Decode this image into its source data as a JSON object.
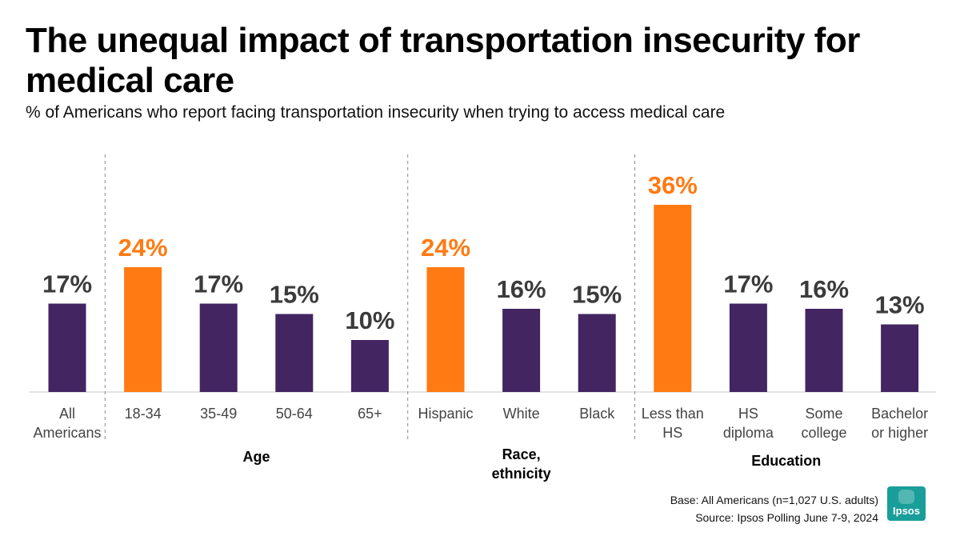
{
  "title": "The unequal impact of transportation insecurity for medical care",
  "subtitle": "% of Americans who report facing transportation insecurity when trying to access medical care",
  "footer": {
    "base": "Base: All Americans (n=1,027 U.S. adults)",
    "source": "Source: Ipsos Polling  June 7-9, 2024"
  },
  "logo_text": "Ipsos",
  "colors": {
    "bar_default": "#432562",
    "bar_highlight": "#FF7A12",
    "label_default": "#3b3b3b",
    "label_highlight": "#FF7A12",
    "logo": "#1a9e9a"
  },
  "chart_data": {
    "type": "bar",
    "unit": "%",
    "ylim": [
      0,
      40
    ],
    "grid": false,
    "categories": [
      {
        "label": [
          "All",
          "Americans"
        ],
        "value": 17,
        "value_label": "17%",
        "highlight": false
      },
      {
        "label": [
          "18-34"
        ],
        "value": 24,
        "value_label": "24%",
        "highlight": true
      },
      {
        "label": [
          "35-49"
        ],
        "value": 17,
        "value_label": "17%",
        "highlight": false
      },
      {
        "label": [
          "50-64"
        ],
        "value": 15,
        "value_label": "15%",
        "highlight": false
      },
      {
        "label": [
          "65+"
        ],
        "value": 10,
        "value_label": "10%",
        "highlight": false
      },
      {
        "label": [
          "Hispanic"
        ],
        "value": 24,
        "value_label": "24%",
        "highlight": true
      },
      {
        "label": [
          "White"
        ],
        "value": 16,
        "value_label": "16%",
        "highlight": false
      },
      {
        "label": [
          "Black"
        ],
        "value": 15,
        "value_label": "15%",
        "highlight": false
      },
      {
        "label": [
          "Less than",
          "HS"
        ],
        "value": 36,
        "value_label": "36%",
        "highlight": true
      },
      {
        "label": [
          "HS",
          "diploma"
        ],
        "value": 17,
        "value_label": "17%",
        "highlight": false
      },
      {
        "label": [
          "Some",
          "college"
        ],
        "value": 16,
        "value_label": "16%",
        "highlight": false
      },
      {
        "label": [
          "Bachelor",
          "or higher"
        ],
        "value": 13,
        "value_label": "13%",
        "highlight": false
      }
    ],
    "groups": [
      {
        "name": [
          "Age"
        ],
        "from": 1,
        "to": 4
      },
      {
        "name": [
          "Race,",
          "ethnicity"
        ],
        "from": 5,
        "to": 7
      },
      {
        "name": [
          "Education"
        ],
        "from": 8,
        "to": 11
      }
    ]
  }
}
